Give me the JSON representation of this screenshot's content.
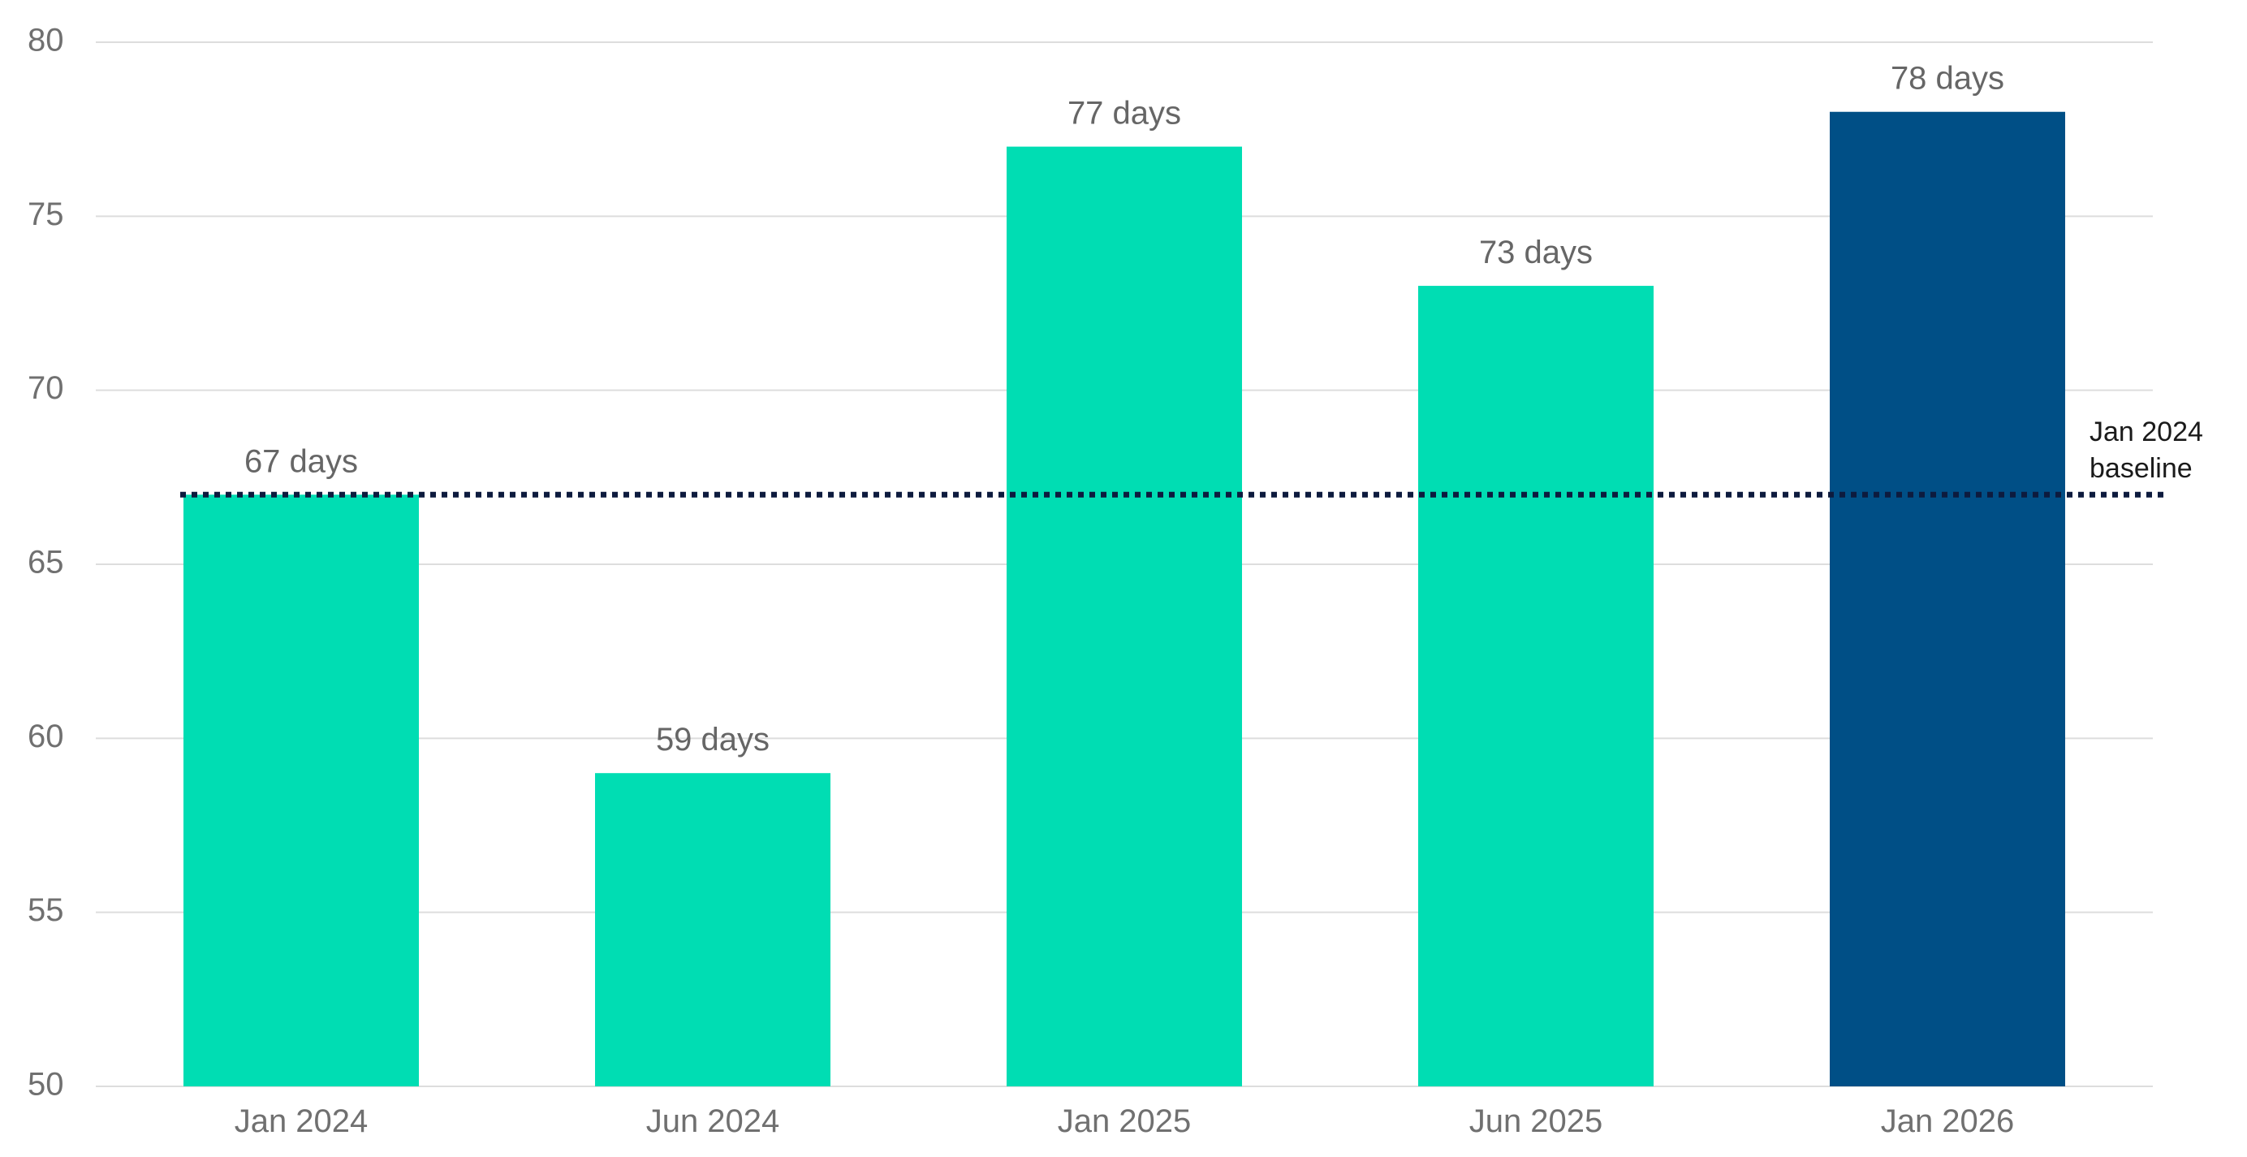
{
  "chart_data": {
    "type": "bar",
    "categories": [
      "Jan 2024",
      "Jun 2024",
      "Jan 2025",
      "Jun 2025",
      "Jan 2026"
    ],
    "values": [
      67,
      59,
      77,
      73,
      78
    ],
    "data_labels": [
      "67 days",
      "59 days",
      "77 days",
      "73 days",
      "78 days"
    ],
    "bar_colors": [
      "#00DDB3",
      "#00DDB3",
      "#00DDB3",
      "#00DDB3",
      "#004F86"
    ],
    "title": "",
    "xlabel": "",
    "ylabel": "",
    "ylim": [
      50,
      80
    ],
    "yticks": [
      50,
      55,
      60,
      65,
      70,
      75,
      80
    ],
    "grid": true,
    "gridline_color": "#DDDDDD",
    "legend": "none",
    "reference_line": {
      "value": 67,
      "label_lines": [
        "Jan 2024",
        "baseline"
      ],
      "style": "dotted",
      "color": "#0D1B3E"
    }
  }
}
